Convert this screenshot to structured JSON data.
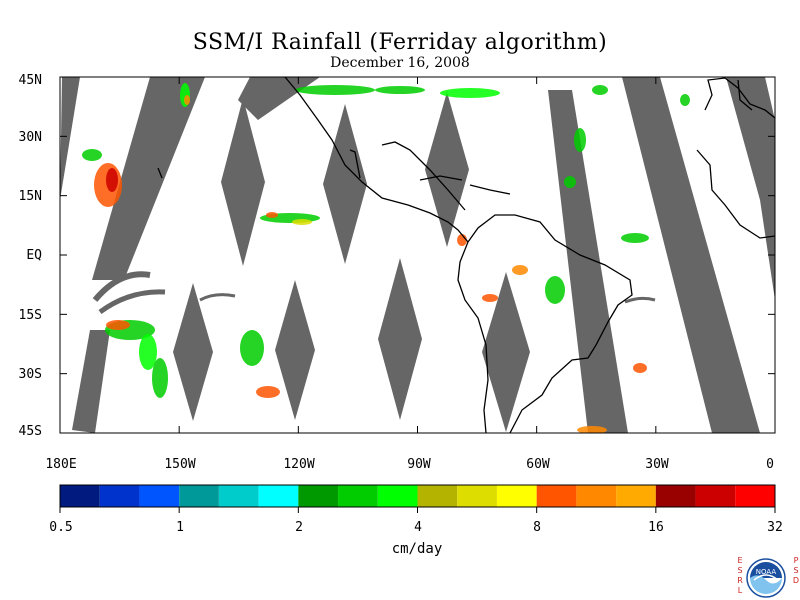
{
  "title": "SSM/I Rainfall (Ferriday algorithm)",
  "subtitle": "December 16, 2008",
  "map": {
    "lat_labels": [
      "45N",
      "30N",
      "15N",
      "EQ",
      "15S",
      "30S",
      "45S"
    ],
    "lat_values": [
      45,
      30,
      15,
      0,
      -15,
      -30,
      -45
    ],
    "lon_labels": [
      "180E",
      "150W",
      "120W",
      "90W",
      "60W",
      "30W",
      "0"
    ],
    "lon_values": [
      -180,
      -150,
      -120,
      -90,
      -60,
      -30,
      0
    ],
    "extent": {
      "lon": [
        -180,
        0
      ],
      "lat": [
        -45,
        45
      ]
    },
    "no_data_color": "#666666",
    "coastline_color": "#000000"
  },
  "colorbar": {
    "colors": [
      "#001a80",
      "#0033cc",
      "#0055ff",
      "#00999a",
      "#00cccc",
      "#00ffff",
      "#009900",
      "#00cc00",
      "#00ff00",
      "#b3b300",
      "#dddd00",
      "#ffff00",
      "#ff5500",
      "#ff8800",
      "#ffaa00",
      "#990000",
      "#cc0000",
      "#ff0000"
    ],
    "tick_labels": [
      "0.5",
      "1",
      "2",
      "4",
      "8",
      "16",
      "32"
    ],
    "units": "cm/day"
  },
  "logo": {
    "left_letters": "ESRL",
    "right_letters": "PSD",
    "center_text": "NOAA"
  }
}
